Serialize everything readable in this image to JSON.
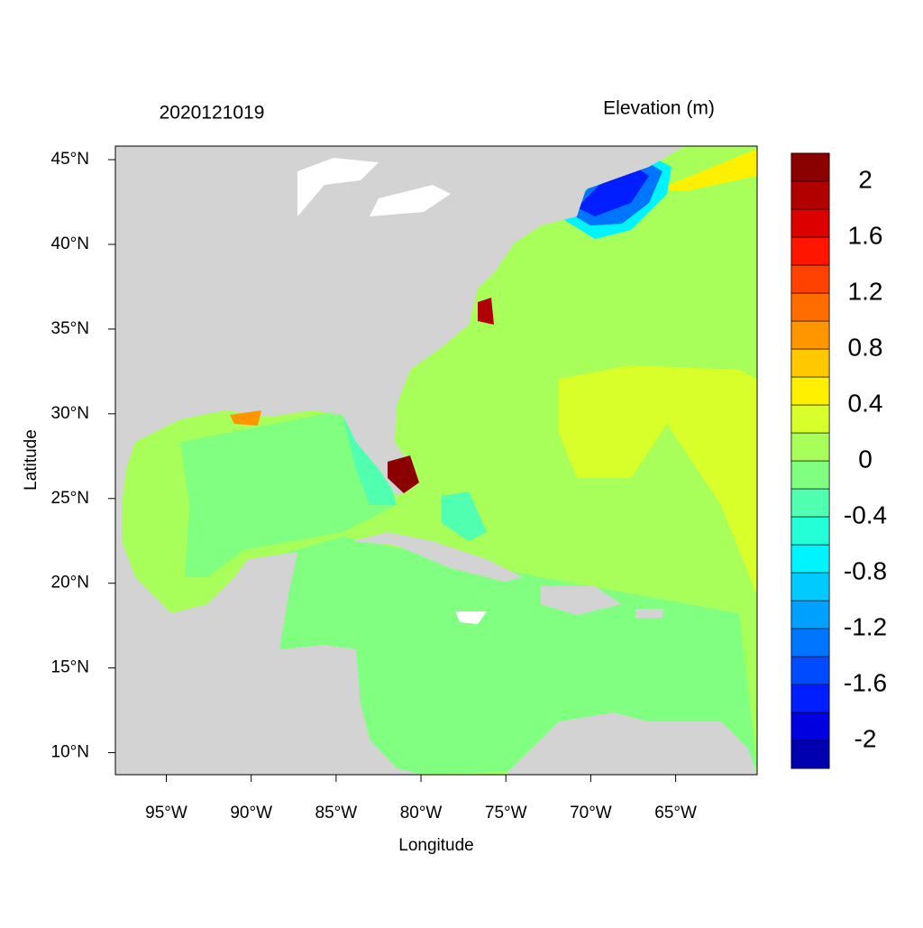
{
  "chart_data": {
    "type": "map",
    "title": "2020121019",
    "colorbar_title": "Elevation (m)",
    "xlabel": "Longitude",
    "ylabel": "Latitude",
    "xlim": [
      -98,
      -60.2
    ],
    "ylim": [
      8.7,
      45.8
    ],
    "xticks": [
      {
        "value": -95,
        "label": "95°W"
      },
      {
        "value": -90,
        "label": "90°W"
      },
      {
        "value": -85,
        "label": "85°W"
      },
      {
        "value": -80,
        "label": "80°W"
      },
      {
        "value": -75,
        "label": "75°W"
      },
      {
        "value": -70,
        "label": "70°W"
      },
      {
        "value": -65,
        "label": "65°W"
      }
    ],
    "yticks": [
      {
        "value": 10,
        "label": "10°N"
      },
      {
        "value": 15,
        "label": "15°N"
      },
      {
        "value": 20,
        "label": "20°N"
      },
      {
        "value": 25,
        "label": "25°N"
      },
      {
        "value": 30,
        "label": "30°N"
      },
      {
        "value": 35,
        "label": "35°N"
      },
      {
        "value": 40,
        "label": "40°N"
      },
      {
        "value": 45,
        "label": "45°N"
      }
    ],
    "clim": [
      -2.2,
      2.2
    ],
    "colors": [
      "#0000b0",
      "#0000e0",
      "#001eff",
      "#004aff",
      "#0075ff",
      "#00a0ff",
      "#00caff",
      "#00f4ff",
      "#25ffd8",
      "#50ffaf",
      "#80ff80",
      "#a8ff5a",
      "#d8ff2a",
      "#fff000",
      "#ffc800",
      "#ff9600",
      "#ff6c00",
      "#ff4200",
      "#ff1500",
      "#dd0000",
      "#b00000",
      "#8b0000"
    ],
    "cticks": [
      -2,
      -1.6,
      -1.2,
      -0.8,
      -0.4,
      0,
      0.4,
      0.8,
      1.2,
      1.6,
      2
    ]
  }
}
